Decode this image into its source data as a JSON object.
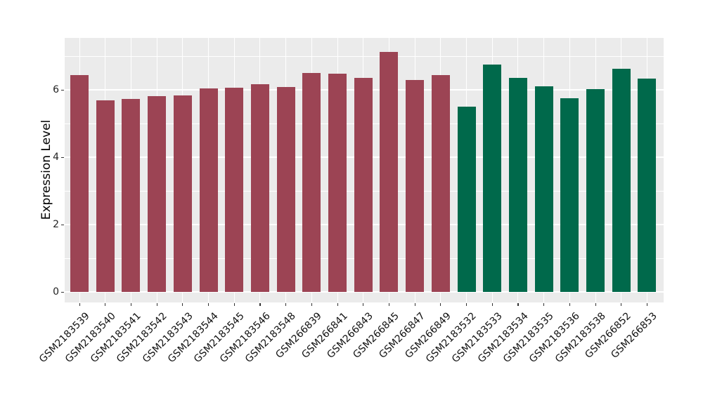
{
  "chart_data": {
    "type": "bar",
    "title": "",
    "xlabel": "",
    "ylabel": "Expression Level",
    "categories": [
      "GSM2183539",
      "GSM2183540",
      "GSM2183541",
      "GSM2183542",
      "GSM2183543",
      "GSM2183544",
      "GSM2183545",
      "GSM2183546",
      "GSM2183548",
      "GSM266839",
      "GSM266841",
      "GSM266843",
      "GSM266845",
      "GSM266847",
      "GSM266849",
      "GSM2183532",
      "GSM2183533",
      "GSM2183534",
      "GSM2183535",
      "GSM2183536",
      "GSM2183538",
      "GSM266852",
      "GSM266853"
    ],
    "values": [
      6.44,
      5.68,
      5.73,
      5.81,
      5.83,
      6.04,
      6.06,
      6.16,
      6.08,
      6.5,
      6.48,
      6.35,
      7.13,
      6.3,
      6.43,
      5.49,
      6.75,
      6.35,
      6.1,
      5.74,
      6.03,
      6.63,
      6.34
    ],
    "groups": [
      "group1",
      "group1",
      "group1",
      "group1",
      "group1",
      "group1",
      "group1",
      "group1",
      "group1",
      "group1",
      "group1",
      "group1",
      "group1",
      "group1",
      "group1",
      "group2",
      "group2",
      "group2",
      "group2",
      "group2",
      "group2",
      "group2",
      "group2"
    ],
    "group_colors": {
      "group1": "#9C4454",
      "group2": "#00694B"
    },
    "ylim": [
      -0.31,
      7.54
    ],
    "yticks_major": [
      0,
      2,
      4,
      6
    ],
    "yticks_minor": [
      1,
      3,
      5,
      7
    ],
    "ytick_labels": [
      "0",
      "2",
      "4",
      "6"
    ],
    "grid": "on",
    "legend": "none",
    "panel_bg": "#EBEBEB",
    "grid_color": "#FFFFFF",
    "tick_color": "#333333",
    "x_label_rotation_deg": 45
  }
}
